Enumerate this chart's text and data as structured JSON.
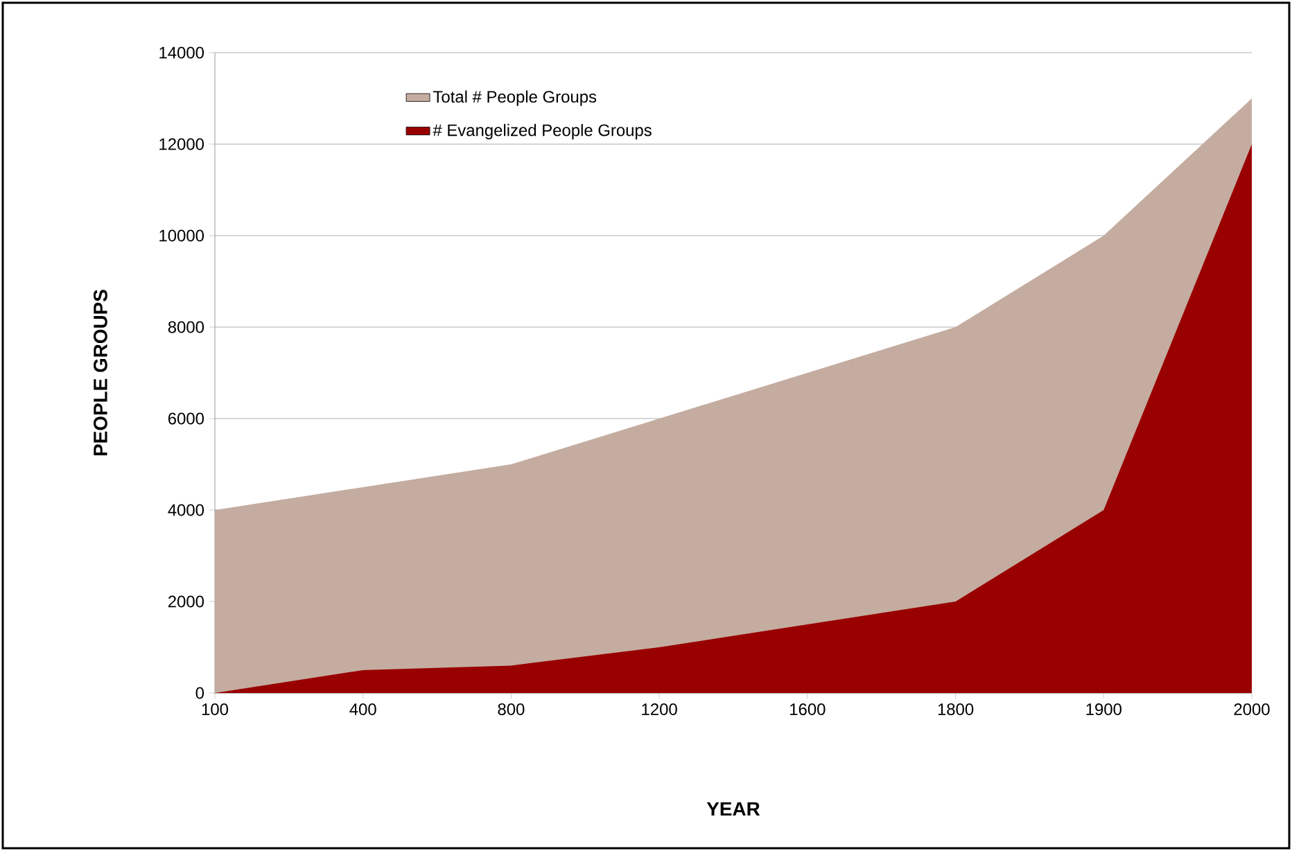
{
  "chart_data": {
    "type": "area",
    "xlabel": "YEAR",
    "ylabel": "PEOPLE GROUPS",
    "categories": [
      "100",
      "400",
      "800",
      "1200",
      "1600",
      "1800",
      "1900",
      "2000"
    ],
    "series": [
      {
        "name": "Total # People Groups",
        "color": "#c4aca0",
        "values": [
          4000,
          4500,
          5000,
          6000,
          7000,
          8000,
          10000,
          13000
        ]
      },
      {
        "name": "# Evangelized People Groups",
        "color": "#990000",
        "values": [
          0,
          500,
          600,
          1000,
          1500,
          2000,
          4000,
          12000
        ]
      }
    ],
    "ylim": [
      0,
      14000
    ],
    "yticks": [
      0,
      2000,
      4000,
      6000,
      8000,
      10000,
      12000,
      14000
    ],
    "grid": "y",
    "legend": "top left"
  }
}
